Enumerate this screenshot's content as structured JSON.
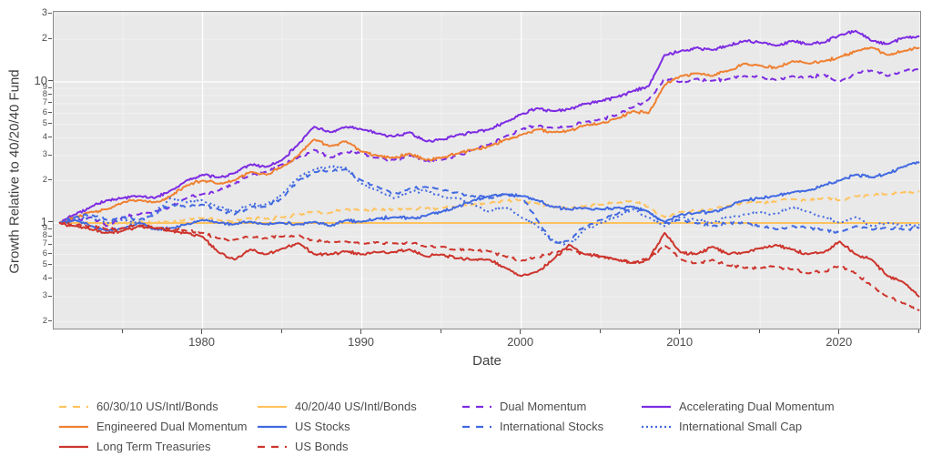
{
  "axes": {
    "y_title": "Growth Relative to 40/20/40 Fund",
    "x_title": "Date"
  },
  "chart_data": {
    "type": "line",
    "title": "",
    "xlabel": "Date",
    "ylabel": "Growth Relative to 40/20/40 Fund",
    "y_scale": "log",
    "ylim": [
      0.176,
      31.8
    ],
    "xlim": [
      1970.6,
      2025.1
    ],
    "grid": "on",
    "legend_position": "bottom",
    "panel_bg": "#e9e9e9",
    "grid_major_color": "#ffffff",
    "grid_minor_color": "#f3f3f3",
    "x_ticks": [
      {
        "v": 1975,
        "label": ""
      },
      {
        "v": 1980,
        "label": "1980"
      },
      {
        "v": 1985,
        "label": ""
      },
      {
        "v": 1990,
        "label": "1990"
      },
      {
        "v": 1995,
        "label": ""
      },
      {
        "v": 2000,
        "label": "2000"
      },
      {
        "v": 2005,
        "label": ""
      },
      {
        "v": 2010,
        "label": "2010"
      },
      {
        "v": 2015,
        "label": ""
      },
      {
        "v": 2020,
        "label": "2020"
      },
      {
        "v": 2025,
        "label": ""
      }
    ],
    "y_ticks": [
      {
        "v": 30,
        "label": "3",
        "kind": "mid"
      },
      {
        "v": 20,
        "label": "2",
        "kind": "mid"
      },
      {
        "v": 10,
        "label": "10",
        "kind": "major"
      },
      {
        "v": 9,
        "label": "9",
        "kind": "minor"
      },
      {
        "v": 8,
        "label": "8",
        "kind": "minor"
      },
      {
        "v": 7,
        "label": "7",
        "kind": "minor"
      },
      {
        "v": 6,
        "label": "6",
        "kind": "minor"
      },
      {
        "v": 5,
        "label": "5",
        "kind": "minor"
      },
      {
        "v": 4,
        "label": "4",
        "kind": "minor"
      },
      {
        "v": 3,
        "label": "3",
        "kind": "minor"
      },
      {
        "v": 2,
        "label": "2",
        "kind": "minor"
      },
      {
        "v": 1,
        "label": "1",
        "kind": "major"
      },
      {
        "v": 0.9,
        "label": "9",
        "kind": "minor"
      },
      {
        "v": 0.8,
        "label": "8",
        "kind": "minor"
      },
      {
        "v": 0.7,
        "label": "7",
        "kind": "minor"
      },
      {
        "v": 0.6,
        "label": "6",
        "kind": "minor"
      },
      {
        "v": 0.5,
        "label": "5",
        "kind": "minor"
      },
      {
        "v": 0.4,
        "label": "4",
        "kind": "minor"
      },
      {
        "v": 0.3,
        "label": "3",
        "kind": "minor"
      },
      {
        "v": 0.2,
        "label": "2",
        "kind": "minor"
      }
    ],
    "x": [
      1971,
      1972,
      1973,
      1974,
      1975,
      1976,
      1977,
      1978,
      1979,
      1980,
      1981,
      1982,
      1983,
      1984,
      1985,
      1986,
      1987,
      1988,
      1989,
      1990,
      1991,
      1992,
      1993,
      1994,
      1995,
      1996,
      1997,
      1998,
      1999,
      2000,
      2001,
      2002,
      2003,
      2004,
      2005,
      2006,
      2007,
      2008,
      2009,
      2010,
      2011,
      2012,
      2013,
      2014,
      2015,
      2016,
      2017,
      2018,
      2019,
      2020,
      2021,
      2022,
      2023,
      2024,
      2025
    ],
    "series": [
      {
        "name": "60/30/10 US/Intl/Bonds",
        "color": "#ffc35f",
        "dash": "dash",
        "values": [
          1.0,
          1.02,
          1.0,
          0.97,
          1.0,
          1.02,
          1.0,
          1.02,
          1.05,
          1.08,
          1.05,
          1.03,
          1.08,
          1.07,
          1.1,
          1.15,
          1.2,
          1.18,
          1.25,
          1.22,
          1.25,
          1.24,
          1.26,
          1.27,
          1.28,
          1.3,
          1.35,
          1.38,
          1.44,
          1.45,
          1.38,
          1.3,
          1.28,
          1.32,
          1.35,
          1.38,
          1.42,
          1.3,
          1.1,
          1.2,
          1.22,
          1.25,
          1.32,
          1.38,
          1.4,
          1.42,
          1.48,
          1.45,
          1.5,
          1.45,
          1.55,
          1.58,
          1.6,
          1.65,
          1.68
        ]
      },
      {
        "name": "40/20/40 US/Intl/Bonds",
        "color": "#ffc35f",
        "dash": "solid",
        "values": [
          1,
          1,
          1,
          1,
          1,
          1,
          1,
          1,
          1,
          1,
          1,
          1,
          1,
          1,
          1,
          1,
          1,
          1,
          1,
          1,
          1,
          1,
          1,
          1,
          1,
          1,
          1,
          1,
          1,
          1,
          1,
          1,
          1,
          1,
          1,
          1,
          1,
          1,
          1,
          1,
          1,
          1,
          1,
          1,
          1,
          1,
          1,
          1,
          1,
          1,
          1,
          1,
          1,
          1,
          1
        ]
      },
      {
        "name": "Dual Momentum",
        "color": "#7d2be2",
        "dash": "dash",
        "values": [
          1.0,
          1.05,
          1.1,
          0.95,
          1.1,
          1.15,
          1.2,
          1.3,
          1.5,
          1.6,
          1.7,
          1.9,
          2.2,
          2.3,
          2.6,
          2.9,
          3.3,
          2.9,
          3.2,
          3.1,
          2.9,
          2.8,
          3.0,
          2.75,
          2.8,
          3.0,
          3.3,
          3.6,
          4.1,
          4.6,
          4.9,
          4.7,
          4.8,
          5.2,
          5.4,
          5.8,
          6.6,
          7.5,
          10.5,
          10.0,
          10.5,
          10.2,
          10.5,
          11.0,
          10.8,
          10.3,
          11.0,
          10.8,
          11.2,
          10.0,
          11.5,
          12.0,
          11.0,
          12.0,
          12.3
        ]
      },
      {
        "name": "Accelerating Dual Momentum",
        "color": "#7d2be2",
        "dash": "solid",
        "values": [
          1.0,
          1.15,
          1.3,
          1.45,
          1.5,
          1.55,
          1.5,
          1.7,
          2.0,
          2.2,
          2.1,
          2.25,
          2.6,
          2.5,
          2.8,
          3.6,
          4.8,
          4.4,
          4.8,
          4.6,
          4.3,
          4.1,
          4.4,
          3.8,
          3.9,
          4.2,
          4.4,
          4.6,
          5.2,
          5.9,
          6.5,
          6.2,
          6.4,
          7.0,
          7.3,
          7.8,
          8.6,
          9.3,
          15.5,
          16.5,
          17.5,
          16.8,
          18.0,
          19.5,
          19.0,
          18.0,
          19.5,
          18.5,
          19.0,
          21.5,
          23.0,
          19.5,
          18.5,
          20.5,
          21.0
        ]
      },
      {
        "name": "Engineered Dual Momentum",
        "color": "#ef8032",
        "dash": "solid",
        "values": [
          1.0,
          1.1,
          1.2,
          1.25,
          1.4,
          1.45,
          1.4,
          1.55,
          1.85,
          2.0,
          1.9,
          2.0,
          2.3,
          2.2,
          2.5,
          3.0,
          3.9,
          3.5,
          3.8,
          3.2,
          3.0,
          2.9,
          3.1,
          2.8,
          2.9,
          3.1,
          3.3,
          3.5,
          3.9,
          4.2,
          4.6,
          4.4,
          4.5,
          4.9,
          5.1,
          5.5,
          6.2,
          6.0,
          9.5,
          11.0,
          11.5,
          11.0,
          12.0,
          13.5,
          13.0,
          12.5,
          14.0,
          13.5,
          14.0,
          15.0,
          16.5,
          17.5,
          15.5,
          16.5,
          17.5
        ]
      },
      {
        "name": "US Stocks",
        "color": "#4169e1",
        "dash": "solid",
        "values": [
          1.0,
          1.05,
          0.95,
          0.88,
          0.92,
          1.0,
          0.9,
          0.92,
          0.98,
          1.05,
          1.0,
          0.98,
          1.02,
          0.98,
          1.0,
          0.98,
          1.02,
          0.95,
          1.05,
          1.02,
          1.08,
          1.1,
          1.08,
          1.12,
          1.2,
          1.3,
          1.45,
          1.55,
          1.6,
          1.55,
          1.45,
          1.3,
          1.25,
          1.28,
          1.25,
          1.28,
          1.3,
          1.2,
          1.02,
          1.15,
          1.18,
          1.2,
          1.3,
          1.45,
          1.5,
          1.55,
          1.65,
          1.7,
          1.85,
          2.0,
          2.2,
          2.1,
          2.25,
          2.5,
          2.7
        ]
      },
      {
        "name": "International Stocks",
        "color": "#4169e1",
        "dash": "dash",
        "values": [
          1.0,
          1.1,
          1.15,
          1.05,
          1.1,
          1.05,
          1.15,
          1.35,
          1.3,
          1.35,
          1.25,
          1.15,
          1.3,
          1.3,
          1.5,
          2.0,
          2.3,
          2.35,
          2.4,
          2.0,
          1.8,
          1.6,
          1.75,
          1.8,
          1.7,
          1.65,
          1.55,
          1.5,
          1.6,
          1.55,
          1.05,
          0.72,
          0.75,
          0.95,
          1.05,
          1.15,
          1.3,
          1.2,
          1.0,
          1.05,
          1.0,
          0.95,
          1.0,
          1.0,
          0.95,
          0.9,
          0.95,
          0.92,
          0.9,
          0.85,
          0.95,
          0.9,
          0.92,
          0.9,
          0.93
        ]
      },
      {
        "name": "International Small Cap",
        "color": "#4169e1",
        "dash": "dot",
        "values": [
          1.0,
          1.08,
          1.1,
          1.0,
          1.05,
          1.0,
          1.2,
          1.5,
          1.4,
          1.45,
          1.3,
          1.2,
          1.35,
          1.35,
          1.6,
          2.1,
          2.4,
          2.5,
          2.45,
          1.9,
          1.7,
          1.5,
          1.65,
          1.7,
          1.55,
          1.5,
          1.35,
          1.2,
          1.3,
          1.1,
          0.95,
          0.75,
          0.7,
          0.9,
          1.0,
          1.1,
          1.25,
          1.1,
          0.95,
          1.1,
          1.05,
          1.0,
          1.1,
          1.15,
          1.2,
          1.15,
          1.3,
          1.2,
          1.1,
          1.0,
          1.1,
          0.95,
          1.0,
          0.95,
          0.97
        ]
      },
      {
        "name": "Long Term Treasuries",
        "color": "#cd342c",
        "dash": "solid",
        "values": [
          1.0,
          0.95,
          0.9,
          0.85,
          0.88,
          0.95,
          0.92,
          0.88,
          0.85,
          0.8,
          0.62,
          0.55,
          0.65,
          0.6,
          0.66,
          0.72,
          0.6,
          0.6,
          0.63,
          0.6,
          0.62,
          0.62,
          0.65,
          0.58,
          0.6,
          0.56,
          0.55,
          0.55,
          0.48,
          0.42,
          0.45,
          0.55,
          0.7,
          0.6,
          0.58,
          0.55,
          0.52,
          0.55,
          0.85,
          0.62,
          0.6,
          0.68,
          0.6,
          0.62,
          0.66,
          0.7,
          0.65,
          0.6,
          0.62,
          0.74,
          0.6,
          0.55,
          0.42,
          0.38,
          0.3
        ]
      },
      {
        "name": "US Bonds",
        "color": "#cd342c",
        "dash": "dash",
        "values": [
          1.0,
          0.97,
          0.95,
          0.9,
          0.92,
          0.96,
          0.94,
          0.9,
          0.88,
          0.85,
          0.78,
          0.76,
          0.8,
          0.78,
          0.8,
          0.82,
          0.75,
          0.73,
          0.74,
          0.72,
          0.73,
          0.72,
          0.73,
          0.68,
          0.68,
          0.65,
          0.64,
          0.63,
          0.58,
          0.54,
          0.57,
          0.62,
          0.65,
          0.6,
          0.57,
          0.55,
          0.53,
          0.56,
          0.7,
          0.55,
          0.52,
          0.55,
          0.5,
          0.48,
          0.48,
          0.49,
          0.47,
          0.44,
          0.45,
          0.5,
          0.44,
          0.36,
          0.3,
          0.27,
          0.24
        ]
      }
    ]
  }
}
